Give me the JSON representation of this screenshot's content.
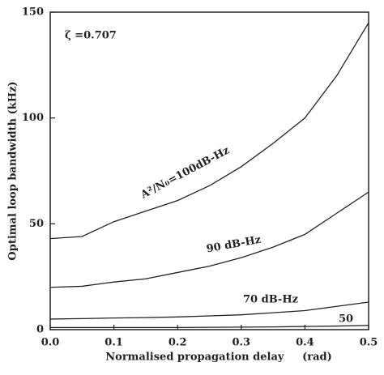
{
  "chart_data": {
    "type": "line",
    "xlabel": "Normalised propagation delay     (rad)",
    "ylabel": "Optimal loop bandwidth (kHz)",
    "annotation": "ζ =0.707",
    "x": [
      0,
      0.05,
      0.1,
      0.15,
      0.2,
      0.25,
      0.3,
      0.35,
      0.4,
      0.45,
      0.5
    ],
    "series": [
      {
        "name": "A²/N₀=100dB-Hz",
        "color": "#222",
        "values": [
          43,
          44,
          51,
          56,
          61,
          68,
          77,
          88,
          100,
          120,
          145
        ]
      },
      {
        "name": "90 dB-Hz",
        "color": "#222",
        "values": [
          20,
          20.5,
          22.5,
          24,
          27,
          30,
          34,
          39,
          45,
          55,
          65
        ]
      },
      {
        "name": "70 dB-Hz",
        "color": "#222",
        "values": [
          5,
          5.2,
          5.5,
          5.7,
          6,
          6.5,
          7,
          8,
          9,
          11,
          13
        ]
      },
      {
        "name": "50",
        "color": "#222",
        "values": [
          1,
          1,
          1,
          1,
          1,
          1.1,
          1.2,
          1.3,
          1.5,
          1.7,
          2
        ]
      }
    ],
    "xlim": [
      0,
      0.5
    ],
    "xticks": [
      {
        "value": 0,
        "label": "0.0"
      },
      0.1,
      0.2,
      0.3,
      0.4,
      0.5
    ],
    "ylim": [
      0,
      150
    ],
    "yticks": [
      0,
      50,
      100,
      150
    ]
  }
}
